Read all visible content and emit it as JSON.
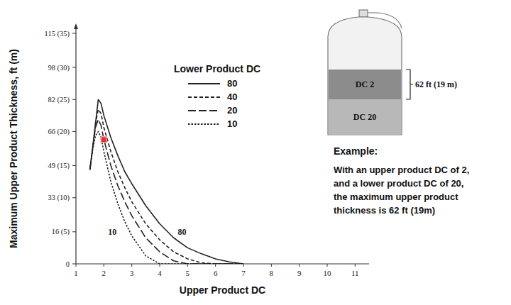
{
  "chart_data": {
    "type": "line",
    "y_label": "Maximum Upper Product Thickness, ft (m)",
    "x_label": "Upper Product DC",
    "legend_title": "Lower Product DC",
    "legend": "top",
    "x": [
      1.5,
      1.6,
      1.7,
      1.8,
      1.9,
      2,
      2.25,
      2.5,
      2.75,
      3,
      3.5,
      4,
      4.5,
      5,
      5.5,
      6,
      6.5,
      7
    ],
    "series": [
      {
        "name": "80",
        "color": "#222222",
        "line_style": "solid",
        "values": [
          47,
          58,
          70,
          82,
          80,
          74,
          63,
          54,
          46,
          40,
          29,
          20,
          13,
          8,
          5,
          2.5,
          1,
          0
        ]
      },
      {
        "name": "40",
        "color": "#222222",
        "line_style": "dashed",
        "values": [
          47,
          58,
          70,
          77,
          75,
          68,
          56,
          46,
          38,
          31,
          20,
          12,
          6,
          2.5,
          0.5,
          0,
          0,
          0
        ]
      },
      {
        "name": "20",
        "color": "#222222",
        "line_style": "longdash",
        "values": [
          47,
          58,
          68,
          72,
          69,
          62,
          49,
          39,
          31,
          24,
          13,
          6,
          1.5,
          0,
          0,
          0,
          0,
          0
        ]
      },
      {
        "name": "10",
        "color": "#222222",
        "line_style": "dotted",
        "values": [
          47,
          57,
          64,
          66,
          63,
          56,
          41,
          30,
          21,
          14,
          4,
          0,
          0,
          0,
          0,
          0,
          0,
          0
        ]
      }
    ],
    "xlim": [
      1,
      11.5
    ],
    "ylim": [
      0,
      115
    ],
    "xticks": [
      1,
      2,
      3,
      4,
      5,
      6,
      7,
      8,
      9,
      10,
      11
    ],
    "yticks": [
      0,
      {
        "value": 16,
        "label": "16 (5)"
      },
      {
        "value": 33,
        "label": "33 (10)"
      },
      {
        "value": 49,
        "label": "49 (15)"
      },
      {
        "value": 66,
        "label": "66 (20)"
      },
      {
        "value": 82,
        "label": "82 (25)"
      },
      {
        "value": 98,
        "label": "98 (30)"
      },
      {
        "value": 115,
        "label": "115 (35)"
      }
    ],
    "grid": false,
    "annotations": [
      {
        "x": 2,
        "y": 62,
        "color": "#e0302f",
        "marker": "square"
      }
    ],
    "curve_labels": [
      {
        "text": "10",
        "x": 2.3,
        "y": 16
      },
      {
        "text": "80",
        "x": 4.8,
        "y": 16
      }
    ],
    "inset": {
      "upper_label": "DC 2",
      "lower_label": "DC 20",
      "thickness_label": "62 ft (19 m)"
    },
    "example": {
      "title": "Example:",
      "lines": [
        "With an upper product DC of 2,",
        "and a lower product DC of 20,",
        "the maximum upper product",
        "thickness is 62 ft (19m)"
      ]
    }
  }
}
